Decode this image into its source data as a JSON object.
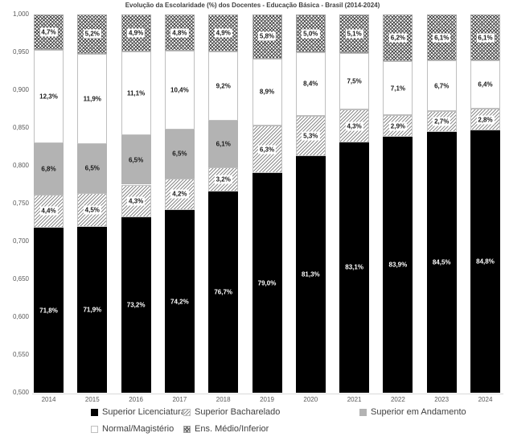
{
  "title": "Evolução da Escolaridade (%) dos Docentes - Educação Básica - Brasil (2014-2024)",
  "chart_data": {
    "type": "bar",
    "stacked": true,
    "title": "Evolução da Escolaridade (%) dos Docentes - Educação Básica - Brasil (2014-2024)",
    "categories": [
      "2014",
      "2015",
      "2016",
      "2017",
      "2018",
      "2019",
      "2020",
      "2021",
      "2022",
      "2023",
      "2024"
    ],
    "series": [
      {
        "name": "Superior Licenciatura",
        "style": "solid-black",
        "values": [
          71.8,
          71.9,
          73.2,
          74.2,
          76.7,
          79.0,
          81.3,
          83.1,
          83.9,
          84.5,
          84.8
        ],
        "labels": [
          "71,8%",
          "71,9%",
          "73,2%",
          "74,2%",
          "76,7%",
          "79,0%",
          "81,3%",
          "83,1%",
          "83,9%",
          "84,5%",
          "84,8%"
        ]
      },
      {
        "name": "Superior Bacharelado",
        "style": "hatch-light",
        "values": [
          4.4,
          4.5,
          4.3,
          4.2,
          3.2,
          6.3,
          5.3,
          4.3,
          2.9,
          2.7,
          2.8
        ],
        "labels": [
          "4,4%",
          "4,5%",
          "4,3%",
          "4,2%",
          "3,2%",
          "6,3%",
          "5,3%",
          "4,3%",
          "2,9%",
          "2,7%",
          "2,8%"
        ]
      },
      {
        "name": "Superior em Andamento",
        "style": "solid-gray",
        "values": [
          6.8,
          6.5,
          6.5,
          6.5,
          6.1,
          0,
          0,
          0,
          0,
          0,
          0
        ],
        "labels": [
          "6,8%",
          "6,5%",
          "6,5%",
          "6,5%",
          "6,1%",
          "",
          "",
          "",
          "",
          "",
          ""
        ]
      },
      {
        "name": "Normal/Magistério",
        "style": "solid-white",
        "values": [
          12.3,
          11.9,
          11.1,
          10.4,
          9.2,
          8.9,
          8.4,
          7.5,
          7.1,
          6.7,
          6.4
        ],
        "labels": [
          "12,3%",
          "11,9%",
          "11,1%",
          "10,4%",
          "9,2%",
          "8,9%",
          "8,4%",
          "7,5%",
          "7,1%",
          "6,7%",
          "6,4%"
        ]
      },
      {
        "name": "Ens. Médio/Inferior",
        "style": "hatch-dense",
        "values": [
          4.7,
          5.2,
          4.9,
          4.8,
          4.9,
          5.8,
          5.0,
          5.1,
          6.2,
          6.1,
          6.1
        ],
        "labels": [
          "4,7%",
          "5,2%",
          "4,9%",
          "4,8%",
          "4,9%",
          "5,8%",
          "5,0%",
          "5,1%",
          "6,2%",
          "6,1%",
          "6,1%"
        ]
      }
    ],
    "ylim": [
      0.5,
      1.0
    ],
    "yticks": [
      {
        "label": "1,000",
        "value": 1.0
      },
      {
        "label": "0,950",
        "value": 0.95
      },
      {
        "label": "0,900",
        "value": 0.9
      },
      {
        "label": "0,850",
        "value": 0.85
      },
      {
        "label": "0,800",
        "value": 0.8
      },
      {
        "label": "0,750",
        "value": 0.75
      },
      {
        "label": "0,700",
        "value": 0.7
      },
      {
        "label": "0,650",
        "value": 0.65
      },
      {
        "label": "0,600",
        "value": 0.6
      },
      {
        "label": "0,550",
        "value": 0.55
      },
      {
        "label": "0,500",
        "value": 0.5
      }
    ],
    "grid": false,
    "legend_position": "bottom",
    "colors": {
      "black": "#000000",
      "gray": "#b3b3b3",
      "white": "#ffffff",
      "hatch_line": "#8c8c8c",
      "dense_hatch_line": "#4d4d4d",
      "axis_text": "#595959",
      "title_text": "#3f3f3f",
      "axis_line": "#d9d9d9",
      "label_on_black": "#ffffff"
    }
  }
}
